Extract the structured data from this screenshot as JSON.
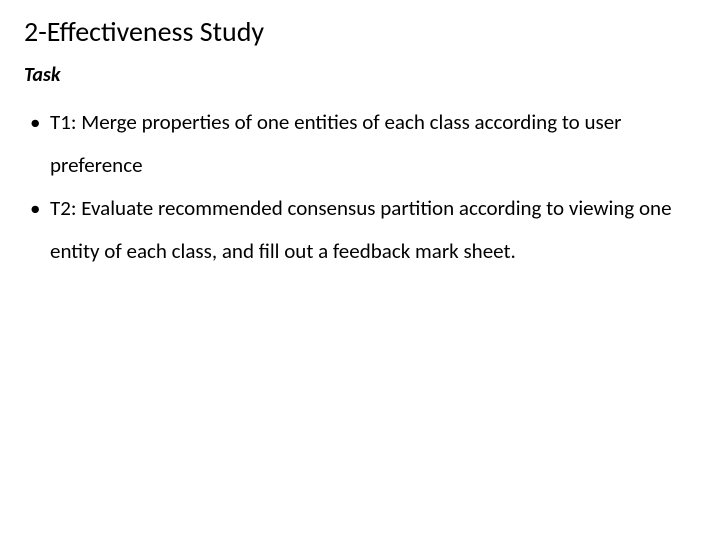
{
  "slide": {
    "title": "2-Effectiveness Study",
    "subtitle": "Task",
    "bullets": [
      "T1: Merge properties of one entities of each class according to user preference",
      "T2: Evaluate recommended consensus partition according to viewing one entity of each class, and fill out a feedback mark sheet."
    ],
    "styling": {
      "background_color": "#ffffff",
      "text_color": "#000000",
      "title_fontsize": 28,
      "subtitle_fontsize": 20,
      "body_fontsize": 21,
      "line_height": 2.05,
      "font_family": "Calibri"
    }
  }
}
